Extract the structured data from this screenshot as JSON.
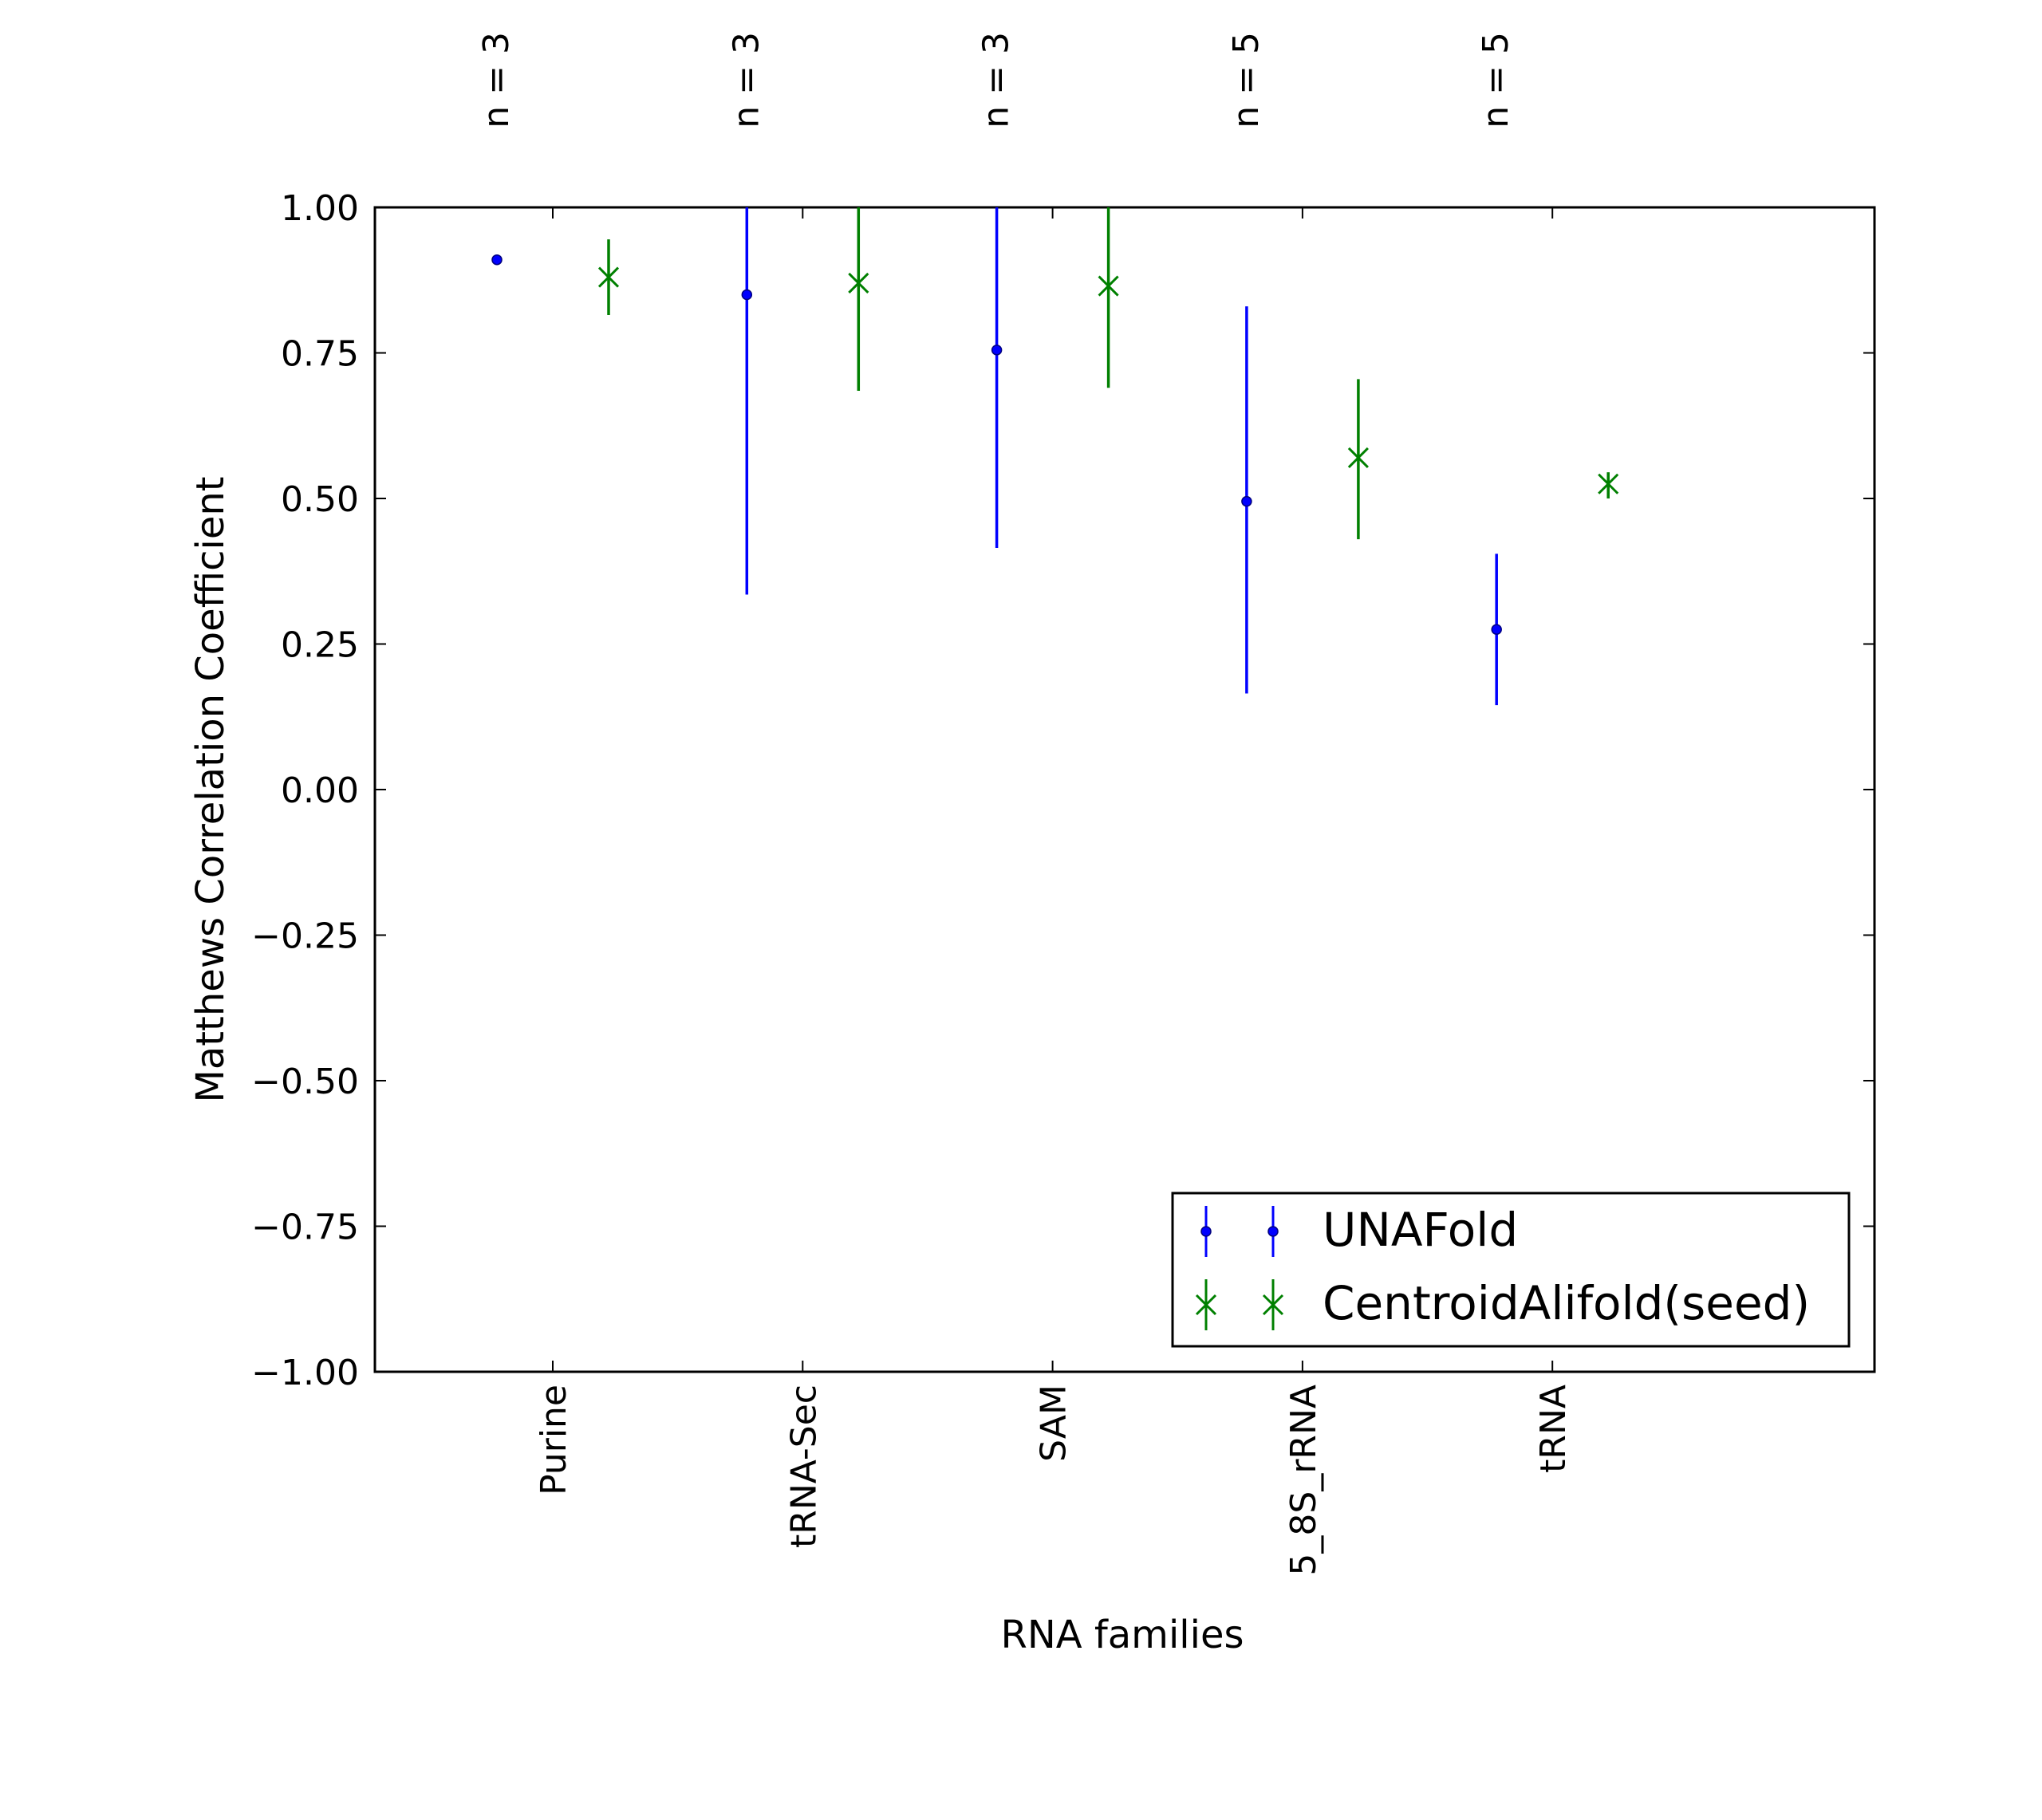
{
  "chart_data": {
    "type": "errorbar",
    "title": "",
    "xlabel": "RNA families",
    "ylabel": "Matthews Correlation Coefficient",
    "ylim": [
      -1.0,
      1.0
    ],
    "yticks": [
      "1.00",
      "0.75",
      "0.50",
      "0.25",
      "0.00",
      "−0.25",
      "−0.50",
      "−0.75",
      "−1.00"
    ],
    "ytick_values": [
      1.0,
      0.75,
      0.5,
      0.25,
      0.0,
      -0.25,
      -0.5,
      -0.75,
      -1.0
    ],
    "categories": [
      "Purine",
      "tRNA-Sec",
      "SAM",
      "5_8S_rRNA",
      "tRNA"
    ],
    "top_labels": [
      "n = 3",
      "n = 3",
      "n = 3",
      "n = 5",
      "n = 5"
    ],
    "grid": false,
    "legend_position": "lower-right",
    "series": [
      {
        "name": "UNAFold",
        "color": "#0000ff",
        "marker": "dot",
        "values": [
          0.91,
          0.85,
          0.755,
          0.495,
          0.275
        ],
        "lower": [
          0.91,
          0.335,
          0.415,
          0.165,
          0.145
        ],
        "upper": [
          0.91,
          1.0,
          1.0,
          0.83,
          0.405
        ]
      },
      {
        "name": "CentroidAlifold(seed)",
        "color": "#008000",
        "marker": "x",
        "values": [
          0.88,
          0.87,
          0.865,
          0.57,
          0.525
        ],
        "lower": [
          0.815,
          0.685,
          0.69,
          0.43,
          0.5
        ],
        "upper": [
          0.945,
          1.0,
          1.0,
          0.705,
          0.545
        ]
      }
    ]
  }
}
